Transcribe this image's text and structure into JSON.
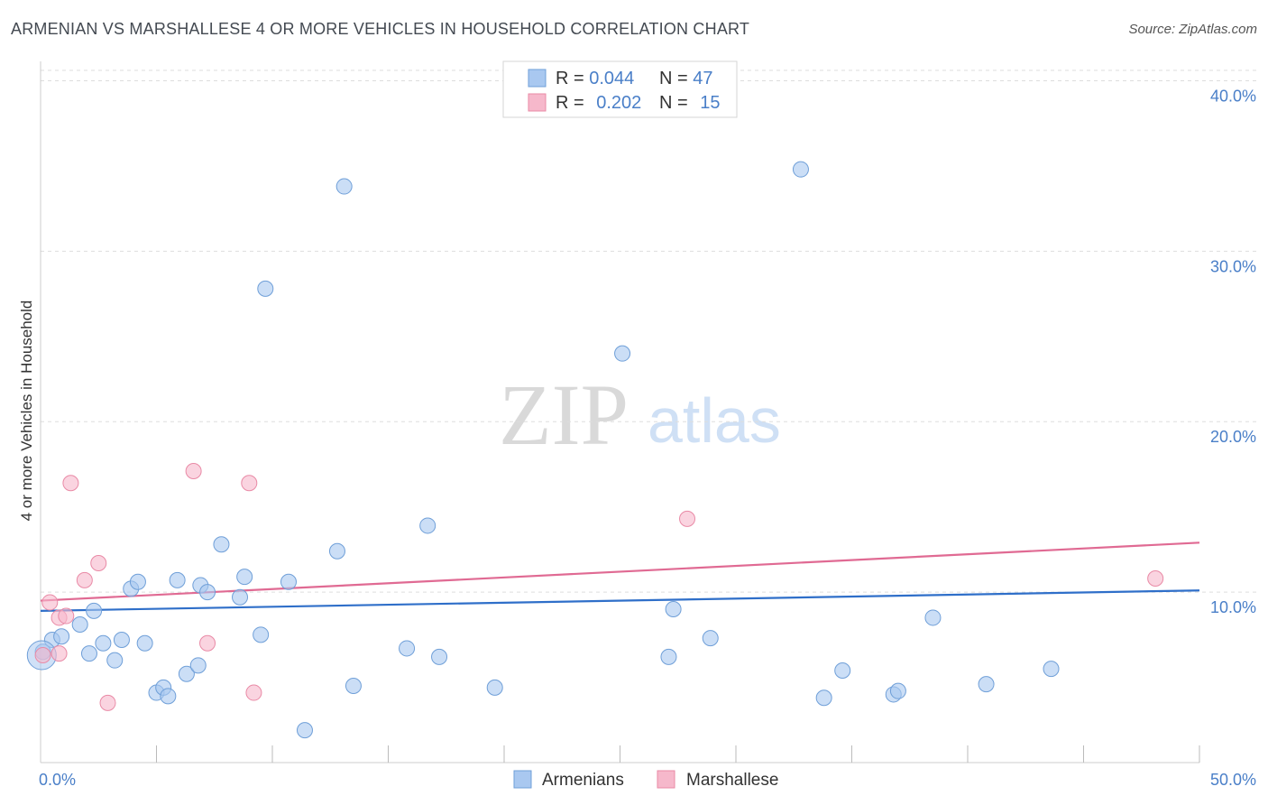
{
  "title": "ARMENIAN VS MARSHALLESE 4 OR MORE VEHICLES IN HOUSEHOLD CORRELATION CHART",
  "source": "Source: ZipAtlas.com",
  "watermark": {
    "zip": "ZIP",
    "atlas": "atlas"
  },
  "colors": {
    "blue_fill": "#a9c8f0",
    "blue_stroke": "#6f9fd8",
    "blue_line": "#2f6fc9",
    "pink_fill": "#f6b8cb",
    "pink_stroke": "#e98aa6",
    "pink_line": "#e06a93",
    "label_blue": "#4a7fc8",
    "grid": "#dddddd"
  },
  "legend": {
    "rows": [
      {
        "r_label": "R = ",
        "r_value": "0.044",
        "n_label": "N = ",
        "n_value": "47"
      },
      {
        "r_label": "R = ",
        "r_value": "0.202",
        "n_label": "N = ",
        "n_value": "15"
      }
    ]
  },
  "chart_data": {
    "type": "scatter",
    "title": "ARMENIAN VS MARSHALLESE 4 OR MORE VEHICLES IN HOUSEHOLD CORRELATION CHART",
    "xlabel": "",
    "ylabel": "4 or more Vehicles in Household",
    "xlim": [
      0,
      50
    ],
    "ylim": [
      0,
      40.5
    ],
    "x_tick_labels": [
      {
        "value": 0,
        "label": "0.0%"
      },
      {
        "value": 50,
        "label": "50.0%"
      }
    ],
    "y_tick_labels": [
      {
        "value": 10,
        "label": "10.0%"
      },
      {
        "value": 20,
        "label": "20.0%"
      },
      {
        "value": 30,
        "label": "30.0%"
      },
      {
        "value": 40,
        "label": "40.0%"
      }
    ],
    "y_gridlines": [
      10,
      20,
      30,
      40
    ],
    "x_minor_ticks": [
      5,
      10,
      15,
      20,
      25,
      30,
      35,
      40,
      45
    ],
    "legend_position": "bottom-center",
    "series": [
      {
        "name": "Armenians",
        "color": "blue",
        "trend": {
          "x": [
            0,
            50
          ],
          "y": [
            8.9,
            10.1
          ]
        },
        "points": [
          [
            0.1,
            6.5
          ],
          [
            0.5,
            7.2
          ],
          [
            0.9,
            7.4
          ],
          [
            1.7,
            8.1
          ],
          [
            2.3,
            8.9
          ],
          [
            2.1,
            6.4
          ],
          [
            2.7,
            7.0
          ],
          [
            3.2,
            6.0
          ],
          [
            3.5,
            7.2
          ],
          [
            3.9,
            10.2
          ],
          [
            4.2,
            10.6
          ],
          [
            4.5,
            7.0
          ],
          [
            5.0,
            4.1
          ],
          [
            5.3,
            4.4
          ],
          [
            5.5,
            3.9
          ],
          [
            5.9,
            10.7
          ],
          [
            6.3,
            5.2
          ],
          [
            6.8,
            5.7
          ],
          [
            6.9,
            10.4
          ],
          [
            7.2,
            10.0
          ],
          [
            7.8,
            12.8
          ],
          [
            8.6,
            9.7
          ],
          [
            8.8,
            10.9
          ],
          [
            9.5,
            7.5
          ],
          [
            9.7,
            27.8
          ],
          [
            10.7,
            10.6
          ],
          [
            11.4,
            1.9
          ],
          [
            12.8,
            12.4
          ],
          [
            13.1,
            33.8
          ],
          [
            13.5,
            4.5
          ],
          [
            15.8,
            6.7
          ],
          [
            16.7,
            13.9
          ],
          [
            17.2,
            6.2
          ],
          [
            19.6,
            4.4
          ],
          [
            25.1,
            24.0
          ],
          [
            27.1,
            6.2
          ],
          [
            27.3,
            9.0
          ],
          [
            28.9,
            7.3
          ],
          [
            32.8,
            34.8
          ],
          [
            33.8,
            3.8
          ],
          [
            34.6,
            5.4
          ],
          [
            36.8,
            4.0
          ],
          [
            37.0,
            4.2
          ],
          [
            38.5,
            8.5
          ],
          [
            40.8,
            4.6
          ],
          [
            43.6,
            5.5
          ],
          [
            0.05,
            6.3
          ]
        ]
      },
      {
        "name": "Marshallese",
        "color": "pink",
        "trend": {
          "x": [
            0,
            50
          ],
          "y": [
            9.5,
            12.9
          ]
        },
        "points": [
          [
            0.1,
            6.3
          ],
          [
            0.4,
            9.4
          ],
          [
            0.8,
            8.5
          ],
          [
            0.8,
            6.4
          ],
          [
            1.1,
            8.6
          ],
          [
            1.3,
            16.4
          ],
          [
            1.9,
            10.7
          ],
          [
            2.5,
            11.7
          ],
          [
            2.9,
            3.5
          ],
          [
            6.6,
            17.1
          ],
          [
            7.2,
            7.0
          ],
          [
            9.0,
            16.4
          ],
          [
            9.2,
            4.1
          ],
          [
            27.9,
            14.3
          ],
          [
            48.1,
            10.8
          ]
        ]
      }
    ]
  }
}
